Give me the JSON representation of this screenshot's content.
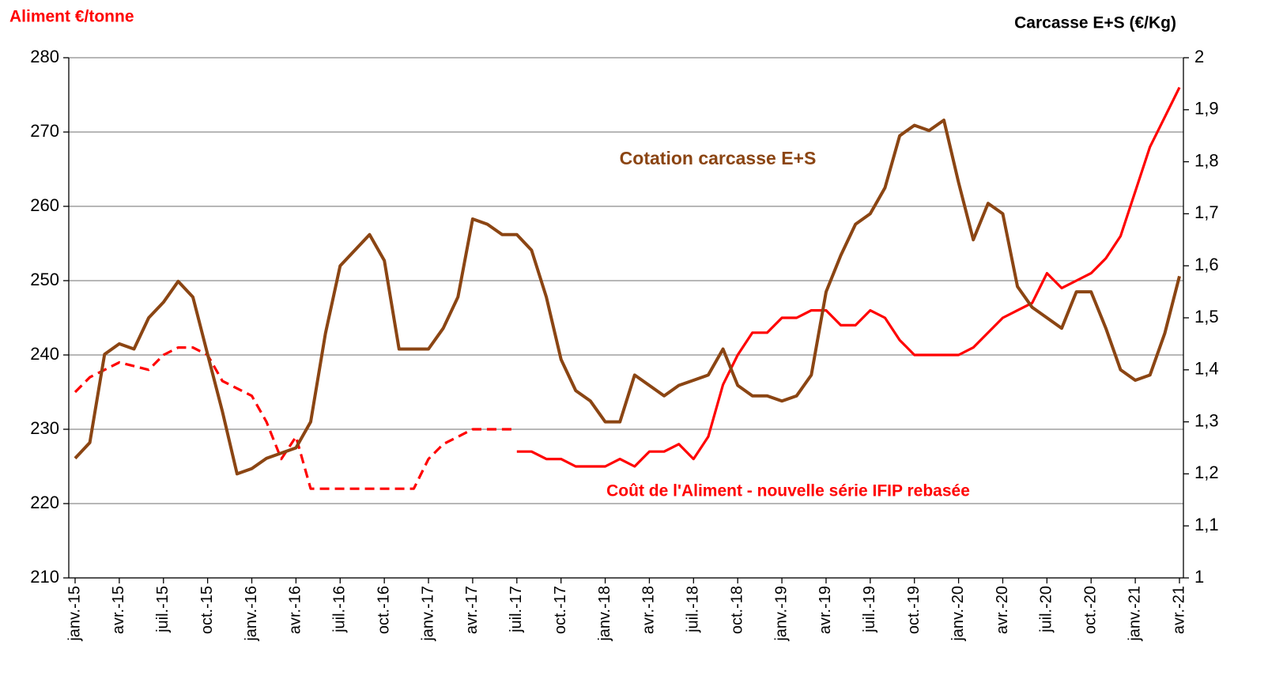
{
  "chart_data": {
    "type": "line",
    "ylabel": "Aliment €/tonne",
    "y2label": "Carcasse  E+S (€/Kg)",
    "categories": [
      "janv.-15",
      null,
      null,
      "avr.-15",
      null,
      null,
      "juil.-15",
      null,
      null,
      "oct.-15",
      null,
      null,
      "janv.-16",
      null,
      null,
      "avr.-16",
      null,
      null,
      "juil.-16",
      null,
      null,
      "oct.-16",
      null,
      null,
      "janv.-17",
      null,
      null,
      "avr.-17",
      null,
      null,
      "juil.-17",
      null,
      null,
      "oct.-17",
      null,
      null,
      "janv.-18",
      null,
      null,
      "avr.-18",
      null,
      null,
      "juil.-18",
      null,
      null,
      "oct.-18",
      null,
      null,
      "janv.-19",
      null,
      null,
      "avr.-19",
      null,
      null,
      "juil.-19",
      null,
      null,
      "oct.-19",
      null,
      null,
      "janv.-20",
      null,
      null,
      "avr.-20",
      null,
      null,
      "juil.-20",
      null,
      null,
      "oct.-20",
      null,
      null,
      "janv.-21",
      null,
      null,
      "avr.-21"
    ],
    "ylim": [
      210,
      280
    ],
    "yticks": [
      210,
      220,
      230,
      240,
      250,
      260,
      270,
      280
    ],
    "y2lim": [
      1,
      2
    ],
    "y2ticks": [
      1,
      {
        "value": 1.1,
        "label": "1,1"
      },
      {
        "value": 1.2,
        "label": "1,2"
      },
      {
        "value": 1.3,
        "label": "1,3"
      },
      {
        "value": 1.4,
        "label": "1,4"
      },
      {
        "value": 1.5,
        "label": "1,5"
      },
      {
        "value": 1.6,
        "label": "1,6"
      },
      {
        "value": 1.7,
        "label": "1,7"
      },
      {
        "value": 1.8,
        "label": "1,8"
      },
      {
        "value": 1.9,
        "label": "1,9"
      },
      2
    ],
    "grid": true,
    "series": [
      {
        "color": "#ff0000",
        "dashed": true,
        "values": [
          235,
          237,
          238,
          239,
          238.5,
          238,
          240,
          241,
          241,
          240,
          236.5,
          235.5,
          234.5,
          231,
          226,
          229,
          222,
          222,
          222,
          222,
          222,
          222,
          222,
          222,
          226,
          228,
          229,
          230,
          230,
          230,
          230,
          null,
          null,
          null,
          null,
          null,
          null,
          null,
          null,
          null,
          null,
          null,
          null,
          null,
          null,
          null,
          null,
          null,
          null,
          null,
          null,
          null,
          null,
          null,
          null,
          null,
          null,
          null,
          null,
          null,
          null,
          null,
          null,
          null,
          null,
          null,
          null,
          null,
          null,
          null,
          null,
          null,
          null,
          null,
          null,
          null
        ]
      },
      {
        "name": "Coût de l'Aliment - nouvelle série IFIP rebasée",
        "color": "#ff0000",
        "dashed": false,
        "values": [
          null,
          null,
          null,
          null,
          null,
          null,
          null,
          null,
          null,
          null,
          null,
          null,
          null,
          null,
          null,
          null,
          null,
          null,
          null,
          null,
          null,
          null,
          null,
          null,
          null,
          null,
          null,
          null,
          null,
          null,
          227,
          227,
          226,
          226,
          225,
          225,
          225,
          226,
          225,
          227,
          227,
          228,
          226,
          229,
          236,
          240,
          243,
          243,
          245,
          245,
          246,
          246,
          244,
          244,
          246,
          245,
          242,
          240,
          240,
          240,
          240,
          241,
          243,
          245,
          246,
          247,
          251,
          249,
          250,
          251,
          253,
          256,
          262,
          268,
          272,
          276
        ]
      },
      {
        "name": "Cotation carcasse E+S",
        "color": "#8b4513",
        "dashed": false,
        "axis": "y2",
        "values": [
          1.23,
          1.26,
          1.43,
          1.45,
          1.44,
          1.5,
          1.53,
          1.57,
          1.54,
          1.43,
          1.32,
          1.2,
          1.21,
          1.23,
          1.24,
          1.25,
          1.3,
          1.47,
          1.6,
          1.63,
          1.66,
          1.61,
          1.44,
          1.44,
          1.44,
          1.48,
          1.54,
          1.69,
          1.68,
          1.66,
          1.66,
          1.63,
          1.54,
          1.42,
          1.36,
          1.34,
          1.3,
          1.3,
          1.39,
          1.37,
          1.35,
          1.37,
          1.38,
          1.39,
          1.44,
          1.37,
          1.35,
          1.35,
          1.34,
          1.35,
          1.39,
          1.55,
          1.62,
          1.68,
          1.7,
          1.75,
          1.85,
          1.87,
          1.86,
          1.88,
          1.76,
          1.65,
          1.72,
          1.7,
          1.56,
          1.52,
          1.5,
          1.48,
          1.55,
          1.55,
          1.48,
          1.4,
          1.38,
          1.39,
          1.47,
          1.58
        ]
      }
    ]
  }
}
